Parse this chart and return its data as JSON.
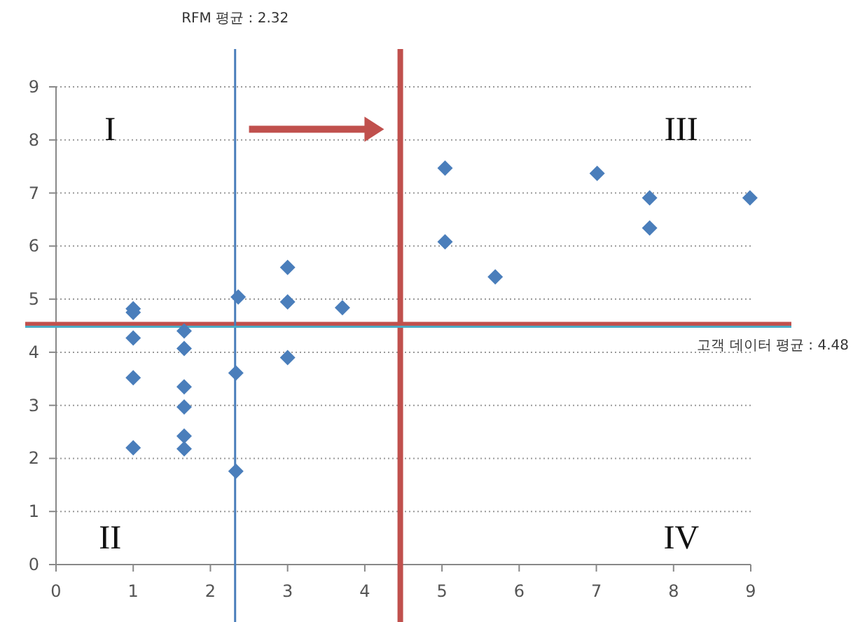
{
  "chart_data": {
    "type": "scatter",
    "marker": "diamond",
    "color": "#4a7ebb",
    "grid": "y",
    "x": [
      1,
      1,
      1,
      1,
      1,
      1.66,
      1.66,
      1.66,
      1.66,
      1.66,
      1.66,
      2.36,
      2.33,
      2.33,
      3,
      3,
      3,
      3.71,
      5.04,
      5.04,
      5.69,
      7.01,
      7.69,
      7.69,
      8.99
    ],
    "values": [
      4.82,
      4.75,
      4.27,
      3.52,
      2.2,
      4.4,
      4.07,
      3.35,
      2.97,
      2.42,
      2.18,
      5.04,
      3.61,
      1.76,
      5.6,
      4.95,
      3.9,
      4.84,
      7.47,
      6.08,
      5.42,
      7.37,
      6.91,
      6.34,
      6.91
    ],
    "xlim": [
      0,
      9
    ],
    "ylim": [
      0,
      9
    ],
    "xticks": [
      0,
      1,
      2,
      3,
      4,
      5,
      6,
      7,
      8,
      9
    ],
    "yticks": [
      0,
      1,
      2,
      3,
      4,
      5,
      6,
      7,
      8,
      9
    ],
    "ref_lines": [
      {
        "axis": "x",
        "value": 2.32,
        "label": "RFM 평균 : 2.32",
        "color": "#4a7ebb"
      },
      {
        "axis": "y",
        "value": 4.48,
        "label": "고객 데이터 평균 : 4.48",
        "color": "#4bacc6"
      },
      {
        "axis": "x",
        "value": 4.46,
        "color": "#c0504d"
      },
      {
        "axis": "y",
        "value": 4.52,
        "color": "#c0504d"
      }
    ],
    "annotations": [
      "I",
      "II",
      "III",
      "IV"
    ]
  }
}
